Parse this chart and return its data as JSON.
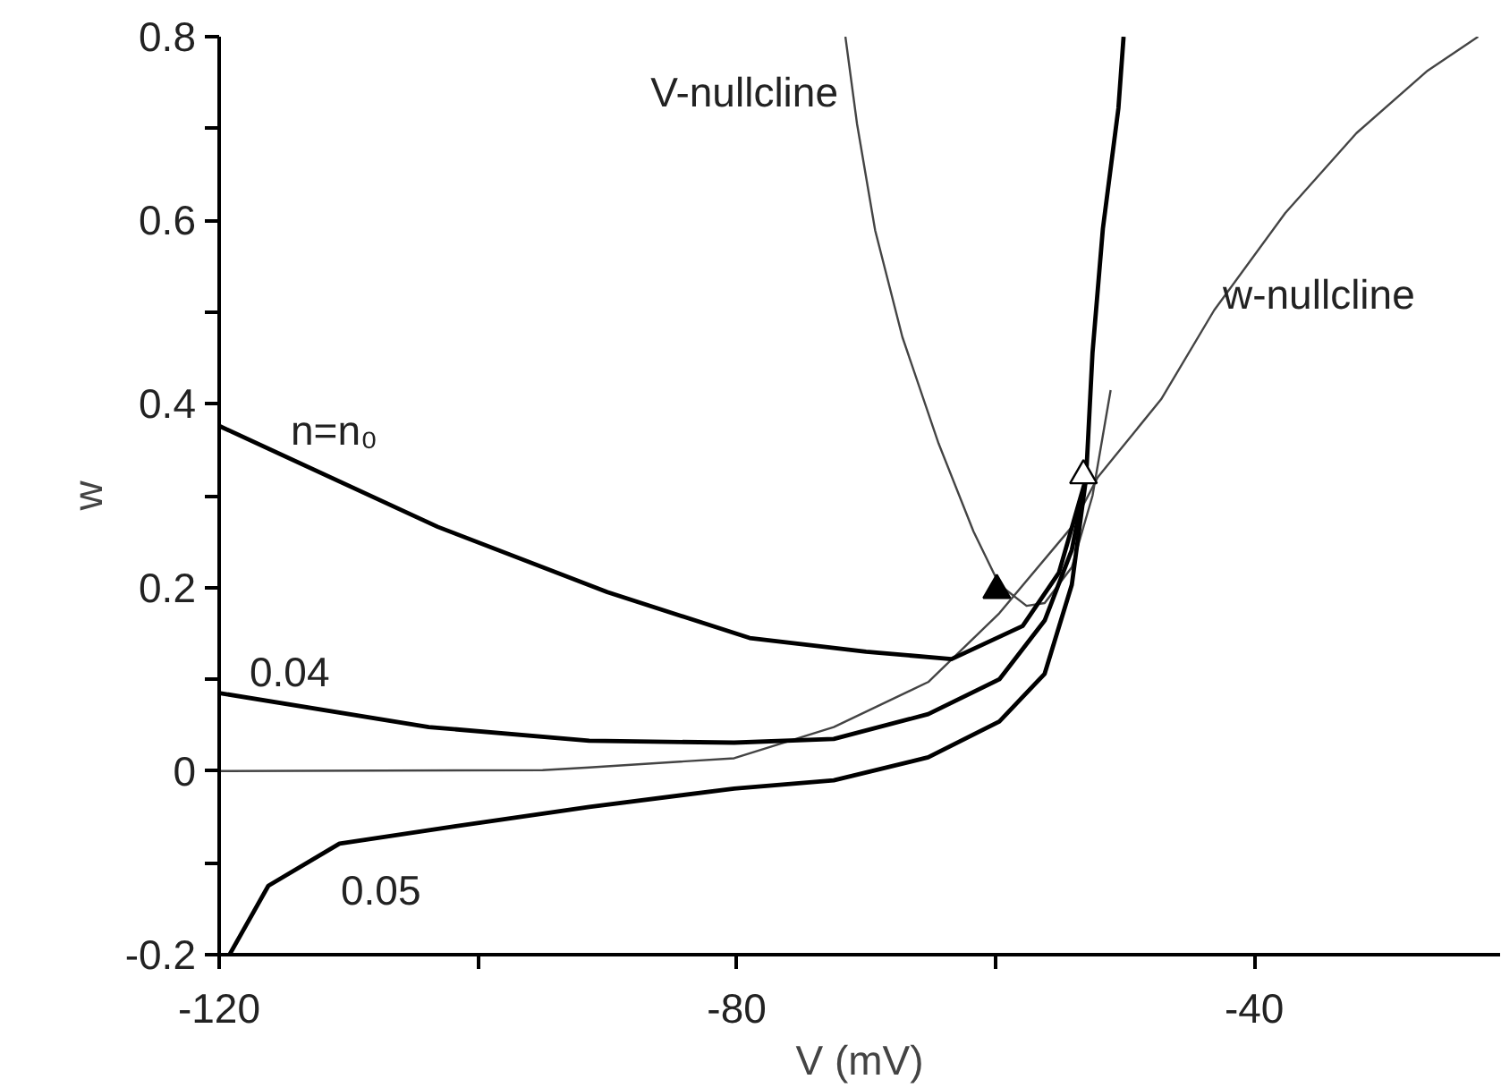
{
  "chart_data": {
    "type": "line",
    "xlabel": "V (mV)",
    "ylabel": "w",
    "xlim": [
      -120,
      -21
    ],
    "ylim": [
      -0.2,
      0.8
    ],
    "xticks": [
      -120,
      {
        "value": -100,
        "label": null
      },
      -80,
      {
        "value": -60,
        "label": null
      },
      -40
    ],
    "yticks": [
      -0.2,
      {
        "value": -0.1,
        "label": null
      },
      0,
      {
        "value": 0.1,
        "label": null
      },
      0.2,
      {
        "value": 0.3,
        "label": null
      },
      0.4,
      {
        "value": 0.5,
        "label": null
      },
      0.6,
      {
        "value": 0.7,
        "label": null
      },
      0.8
    ],
    "grid": false,
    "legend": false,
    "series": [
      {
        "name": "w-nullcline",
        "color": "#444444",
        "x": [
          -120,
          -95,
          -91.4,
          -80.2,
          -72.5,
          -65.2,
          -59.7,
          -54.1,
          -52.1,
          -47.2,
          -43.1,
          -37.6,
          -32.1,
          -26.6,
          -22.7
        ],
        "values": [
          0,
          0.001,
          0.004,
          0.014,
          0.048,
          0.097,
          0.172,
          0.266,
          0.32,
          0.405,
          0.502,
          0.608,
          0.695,
          0.763,
          0.8
        ]
      },
      {
        "name": "V-nullcline",
        "color": "#444444",
        "x": [
          -71.6,
          -70.7,
          -69.3,
          -67.2,
          -64.4,
          -61.7,
          -59.7,
          -57.6,
          -56.2,
          -54.1,
          -52.5,
          -51.1
        ],
        "values": [
          0.8,
          0.705,
          0.589,
          0.473,
          0.357,
          0.261,
          0.203,
          0.18,
          0.183,
          0.222,
          0.3,
          0.415
        ]
      },
      {
        "name": "n=n₀",
        "color": "#000000",
        "x": [
          -120,
          -103.1,
          -90,
          -79,
          -70,
          -63.4,
          -57.9,
          -55.1,
          -53.0
        ],
        "values": [
          0.376,
          0.266,
          0.195,
          0.145,
          0.13,
          0.122,
          0.158,
          0.216,
          0.319
        ]
      },
      {
        "name": "0.04",
        "color": "#000000",
        "x": [
          -120,
          -103.8,
          -91.4,
          -80.2,
          -72.5,
          -65.2,
          -59.7,
          -56.2,
          -54.1,
          -53.0
        ],
        "values": [
          0.085,
          0.048,
          0.033,
          0.031,
          0.035,
          0.062,
          0.1,
          0.164,
          0.241,
          0.319
        ]
      },
      {
        "name": "0.05",
        "color": "#000000",
        "x": [
          -119.2,
          -116.2,
          -110.7,
          -101.7,
          -91.4,
          -80.2,
          -72.5,
          -65.2,
          -59.7,
          -56.2,
          -54.1,
          -53.0
        ],
        "values": [
          -0.2,
          -0.125,
          -0.079,
          -0.06,
          -0.039,
          -0.019,
          -0.01,
          0.015,
          0.054,
          0.106,
          0.203,
          0.319
        ]
      },
      {
        "color": "#000000",
        "x": [
          -53.0,
          -52.5,
          -51.7,
          -50.5,
          -50.1
        ],
        "values": [
          0.319,
          0.456,
          0.591,
          0.722,
          0.8
        ]
      },
      {
        "type": "scatter",
        "marker": "triangle",
        "color": "#000000",
        "x": [
          -59.9
        ],
        "values": [
          0.197
        ]
      },
      {
        "type": "scatter",
        "marker": "triangle",
        "color": "#ffffff",
        "x": [
          -53.2
        ],
        "values": [
          0.322
        ]
      }
    ]
  }
}
